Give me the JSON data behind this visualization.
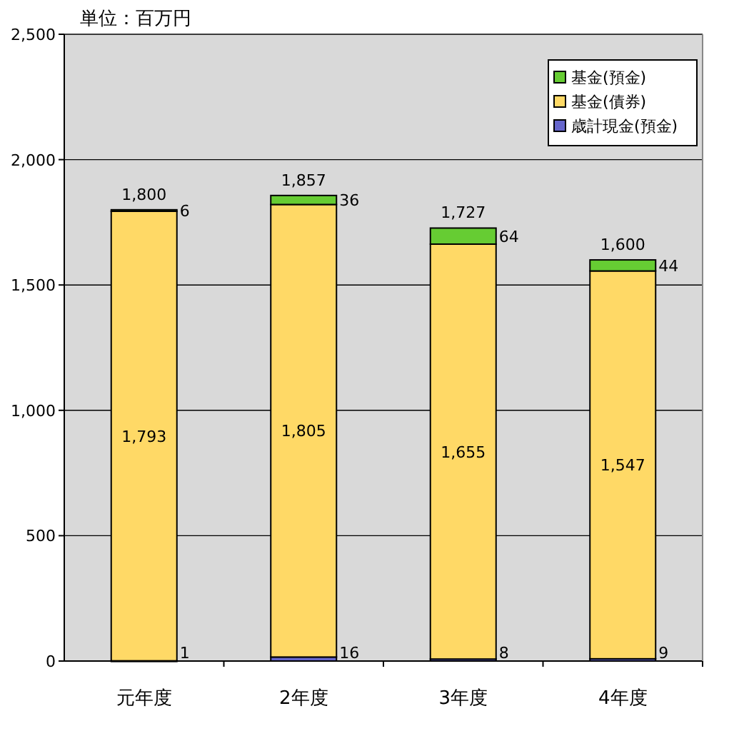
{
  "chart_data": {
    "type": "bar",
    "title": "単位：百万円",
    "stacked": true,
    "categories": [
      "元年度",
      "2年度",
      "3年度",
      "4年度"
    ],
    "series": [
      {
        "name": "歳計現金(預金)",
        "color": "#6666cc",
        "values": [
          1,
          16,
          8,
          9
        ],
        "value_labels": [
          "1",
          "16",
          "8",
          "9"
        ]
      },
      {
        "name": "基金(債券)",
        "color": "#ffd966",
        "values": [
          1793,
          1805,
          1655,
          1547
        ],
        "value_labels": [
          "1,793",
          "1,805",
          "1,655",
          "1,547"
        ]
      },
      {
        "name": "基金(預金)",
        "color": "#66cc33",
        "values": [
          6,
          36,
          64,
          44
        ],
        "value_labels": [
          "6",
          "36",
          "64",
          "44"
        ]
      }
    ],
    "totals": [
      "1,800",
      "1,857",
      "1,727",
      "1,600"
    ],
    "ylim": [
      0,
      2500
    ],
    "yticks": [
      {
        "value": 0,
        "label": "0"
      },
      {
        "value": 500,
        "label": "500"
      },
      {
        "value": 1000,
        "label": "1,000"
      },
      {
        "value": 1500,
        "label": "1,500"
      },
      {
        "value": 2000,
        "label": "2,000"
      },
      {
        "value": 2500,
        "label": "2,500"
      }
    ],
    "grid": "y",
    "legend": "top right"
  }
}
